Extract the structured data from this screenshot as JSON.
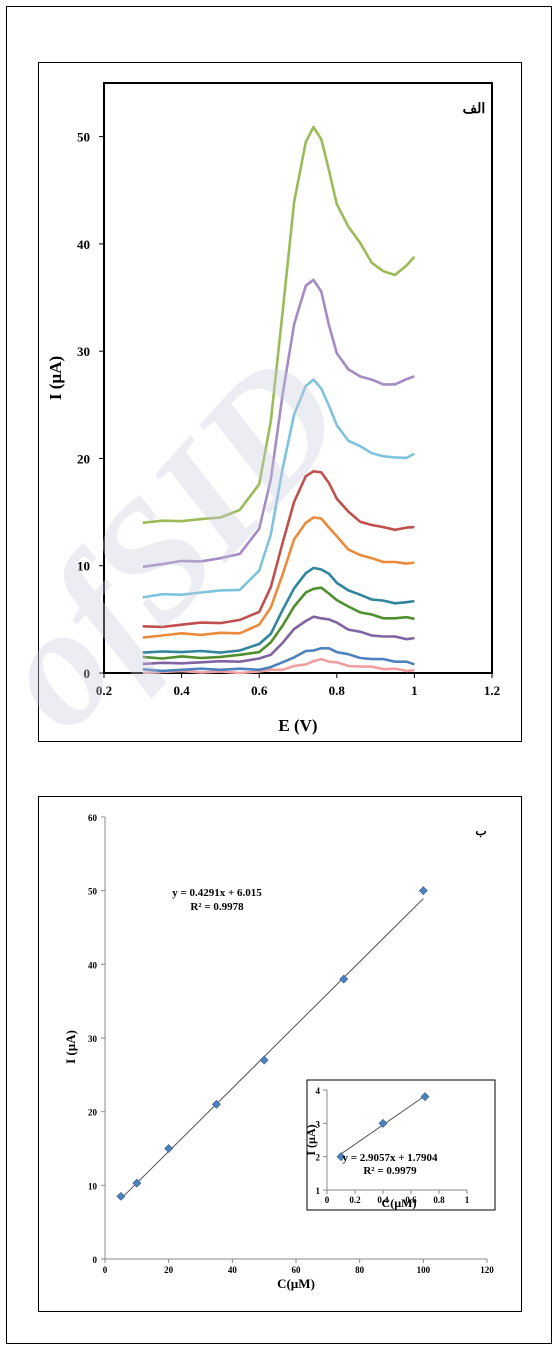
{
  "chart_data": [
    {
      "type": "line",
      "panel_label": "الف",
      "title": "",
      "xlabel": "E (V)",
      "ylabel": "I (µA)",
      "xlim": [
        0.2,
        1.2
      ],
      "ylim": [
        0,
        55
      ],
      "xticks": [
        "0.2",
        "0.4",
        "0.6",
        "0.8",
        "1",
        "1.2"
      ],
      "yticks": [
        "0",
        "10",
        "20",
        "30",
        "40",
        "50"
      ],
      "grid": false,
      "x": [
        0.3,
        0.35,
        0.4,
        0.45,
        0.5,
        0.55,
        0.6,
        0.63,
        0.66,
        0.69,
        0.72,
        0.74,
        0.76,
        0.78,
        0.8,
        0.83,
        0.86,
        0.89,
        0.92,
        0.95,
        0.98,
        1.0
      ],
      "series": [
        {
          "color": "#f0a0a0",
          "values": [
            0.1,
            0.1,
            0.1,
            0.1,
            0.1,
            0.1,
            0.15,
            0.2,
            0.35,
            0.6,
            0.9,
            1.1,
            1.2,
            1.1,
            0.95,
            0.75,
            0.6,
            0.5,
            0.4,
            0.35,
            0.3,
            0.25
          ]
        },
        {
          "color": "#4f81bd",
          "values": [
            0.3,
            0.3,
            0.3,
            0.3,
            0.35,
            0.35,
            0.4,
            0.55,
            0.9,
            1.5,
            2.0,
            2.2,
            2.3,
            2.2,
            2.0,
            1.7,
            1.5,
            1.3,
            1.2,
            1.1,
            1.0,
            0.9
          ]
        },
        {
          "color": "#8064a2",
          "values": [
            0.9,
            0.9,
            1.0,
            1.0,
            1.0,
            1.1,
            1.3,
            1.8,
            2.8,
            4.0,
            4.9,
            5.2,
            5.2,
            5.0,
            4.6,
            4.1,
            3.8,
            3.6,
            3.4,
            3.3,
            3.2,
            3.2
          ]
        },
        {
          "color": "#4f8f2f",
          "values": [
            1.4,
            1.4,
            1.5,
            1.5,
            1.5,
            1.6,
            2.0,
            2.8,
            4.5,
            6.2,
            7.4,
            7.9,
            7.9,
            7.5,
            6.8,
            6.1,
            5.7,
            5.4,
            5.2,
            5.1,
            5.1,
            5.1
          ]
        },
        {
          "color": "#31859c",
          "values": [
            1.9,
            1.9,
            2.0,
            2.0,
            2.0,
            2.1,
            2.6,
            3.7,
            5.8,
            8.0,
            9.3,
            9.7,
            9.7,
            9.2,
            8.5,
            7.7,
            7.2,
            6.9,
            6.7,
            6.6,
            6.6,
            6.6
          ]
        },
        {
          "color": "#e98b3a",
          "values": [
            3.4,
            3.5,
            3.6,
            3.6,
            3.7,
            3.8,
            4.5,
            6.0,
            9.2,
            12.4,
            14.1,
            14.5,
            14.3,
            13.6,
            12.7,
            11.6,
            11.0,
            10.6,
            10.4,
            10.3,
            10.3,
            10.3
          ]
        },
        {
          "color": "#c0504d",
          "values": [
            4.3,
            4.4,
            4.5,
            4.6,
            4.7,
            4.9,
            5.8,
            8.0,
            12.0,
            16.0,
            18.3,
            18.9,
            18.7,
            17.6,
            16.3,
            15.0,
            14.2,
            13.8,
            13.5,
            13.4,
            13.5,
            13.7
          ]
        },
        {
          "color": "#7fc3dc",
          "values": [
            7.1,
            7.3,
            7.4,
            7.5,
            7.6,
            7.8,
            9.5,
            13.0,
            19.0,
            24.0,
            26.8,
            27.3,
            26.6,
            24.9,
            23.0,
            21.7,
            21.1,
            20.6,
            20.2,
            20.0,
            20.1,
            20.4
          ]
        },
        {
          "color": "#a48bc4",
          "values": [
            9.8,
            10.2,
            10.4,
            10.5,
            10.7,
            11.0,
            13.5,
            18.0,
            26.0,
            32.5,
            36.0,
            36.7,
            35.5,
            32.5,
            29.8,
            28.2,
            27.7,
            27.3,
            27.0,
            26.9,
            27.3,
            27.7
          ]
        },
        {
          "color": "#9bbb59",
          "values": [
            14.0,
            14.1,
            14.2,
            14.3,
            14.6,
            15.2,
            17.5,
            23.5,
            33.5,
            44.0,
            49.5,
            50.8,
            49.8,
            46.8,
            43.8,
            41.6,
            40.0,
            38.3,
            37.4,
            37.2,
            38.0,
            38.7
          ]
        }
      ]
    },
    {
      "type": "scatter",
      "panel_label": "ب",
      "title": "",
      "xlabel": "C(µM)",
      "ylabel": "I (µA)",
      "xlim": [
        0,
        120
      ],
      "ylim": [
        0,
        60
      ],
      "xticks": [
        "0",
        "20",
        "40",
        "60",
        "80",
        "100",
        "120"
      ],
      "yticks": [
        "0",
        "10",
        "20",
        "30",
        "40",
        "50",
        "60"
      ],
      "grid": false,
      "points": {
        "x": [
          5,
          10,
          20,
          35,
          50,
          75,
          100
        ],
        "y": [
          8.5,
          10.3,
          15,
          21,
          27,
          38,
          50
        ]
      },
      "fit": {
        "slope": 0.4291,
        "intercept": 6.015,
        "x_range": [
          5,
          100
        ]
      },
      "equation": "y = 0.4291x + 6.015",
      "r2": "R² = 0.9978",
      "inset": {
        "xlabel": "C(µM)",
        "ylabel": "I (µA)",
        "xlim": [
          0,
          1
        ],
        "ylim": [
          1,
          4
        ],
        "xticks": [
          "0",
          "0.2",
          "0.4",
          "0.6",
          "0.8",
          "1"
        ],
        "yticks": [
          "1",
          "2",
          "3",
          "4"
        ],
        "points": {
          "x": [
            0.1,
            0.4,
            0.7
          ],
          "y": [
            2.0,
            3.0,
            3.8
          ]
        },
        "fit": {
          "slope": 2.9057,
          "intercept": 1.7904,
          "x_range": [
            0.1,
            0.7
          ]
        },
        "equation": "y = 2.9057x + 1.7904",
        "r2": "R² = 0.9979"
      }
    }
  ],
  "watermark": {
    "text": "ofSID",
    "color": "#c8c8dc"
  }
}
